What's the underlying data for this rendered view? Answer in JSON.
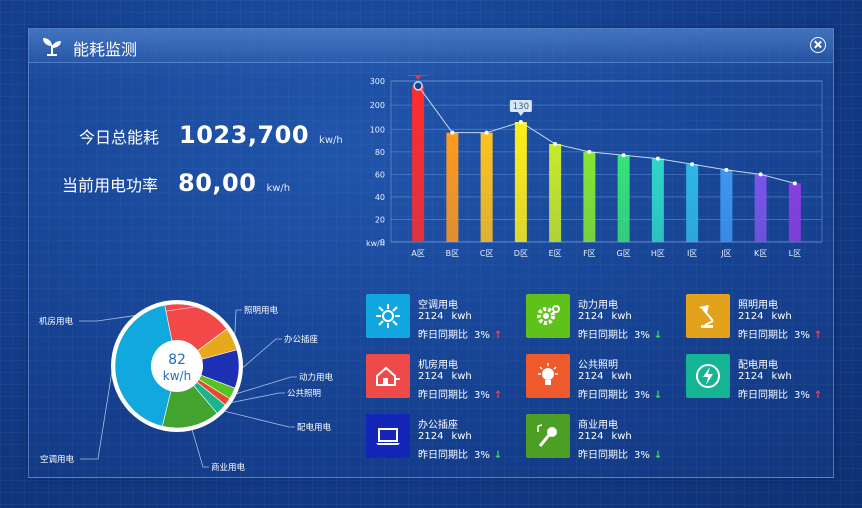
{
  "header": {
    "title": "能耗监测",
    "logo_icon": "leaf-plant-icon",
    "close_icon": "close-icon"
  },
  "stats": {
    "total": {
      "label": "今日总能耗",
      "value": "1023,700",
      "unit": "kw/h"
    },
    "power": {
      "label": "当前用电功率",
      "value": "80,00",
      "unit": "kw/h"
    }
  },
  "chart_data": [
    {
      "type": "bar",
      "ylabel": "kw/h",
      "ylim": [
        0,
        300
      ],
      "yticks": [
        0,
        20,
        40,
        60,
        80,
        100,
        200,
        300
      ],
      "categories": [
        "A区",
        "B区",
        "C区",
        "D区",
        "E区",
        "F区",
        "G区",
        "H区",
        "I区",
        "J区",
        "K区",
        "L区"
      ],
      "values": [
        280,
        97,
        97,
        130,
        87,
        80,
        77,
        74,
        69,
        64,
        60,
        52
      ],
      "colors": [
        "#ff2d2d",
        "#ff9a1f",
        "#ffc21f",
        "#ffee1a",
        "#c8ea2a",
        "#86e632",
        "#35e37a",
        "#2fd6c7",
        "#2fb6e8",
        "#3c96f0",
        "#7a55e6",
        "#8a3fe0"
      ],
      "annotations": [
        {
          "category": "A区",
          "label": "280",
          "color": "#e83a3a"
        },
        {
          "category": "D区",
          "label": "130",
          "color": "#d9e8f8"
        }
      ],
      "line_overlay": true,
      "grid": true
    },
    {
      "type": "pie",
      "center_value": "82",
      "center_unit": "kw/h",
      "slices": [
        {
          "label": "机房用电",
          "value": 18,
          "color": "#f24848"
        },
        {
          "label": "照明用电",
          "value": 6,
          "color": "#e7a91c"
        },
        {
          "label": "办公插座",
          "value": 10,
          "color": "#1d2fb3"
        },
        {
          "label": "动力用电",
          "value": 3,
          "color": "#56c322"
        },
        {
          "label": "公共照明",
          "value": 2,
          "color": "#e8482f"
        },
        {
          "label": "配电用电",
          "value": 3,
          "color": "#1ab38f"
        },
        {
          "label": "商业用电",
          "value": 15,
          "color": "#43a32f"
        },
        {
          "label": "空调用电",
          "value": 43,
          "color": "#11a8dd"
        }
      ]
    }
  ],
  "cards": [
    {
      "name": "空调用电",
      "amount": "2124",
      "unit": "kwh",
      "compare_label": "昨日同期比",
      "compare_value": "3%",
      "trend": "up",
      "arrow": "↑",
      "icon": "air-conditioner-icon",
      "color": "#12a6e0"
    },
    {
      "name": "动力用电",
      "amount": "2124",
      "unit": "kwh",
      "compare_label": "昨日同期比",
      "compare_value": "3%",
      "trend": "down",
      "arrow": "↓",
      "icon": "gear-icon",
      "color": "#5fc21a"
    },
    {
      "name": "照明用电",
      "amount": "2124",
      "unit": "kwh",
      "compare_label": "昨日同期比",
      "compare_value": "3%",
      "trend": "up",
      "arrow": "↑",
      "icon": "desk-lamp-icon",
      "color": "#e2a21b"
    },
    {
      "name": "机房用电",
      "amount": "2124",
      "unit": "kwh",
      "compare_label": "昨日同期比",
      "compare_value": "3%",
      "trend": "up",
      "arrow": "↑",
      "icon": "house-plug-icon",
      "color": "#ee4a4a"
    },
    {
      "name": "公共照明",
      "amount": "2124",
      "unit": "kwh",
      "compare_label": "昨日同期比",
      "compare_value": "3%",
      "trend": "down",
      "arrow": "↓",
      "icon": "light-bulb-icon",
      "color": "#ee5a2c"
    },
    {
      "name": "配电用电",
      "amount": "2124",
      "unit": "kwh",
      "compare_label": "昨日同期比",
      "compare_value": "3%",
      "trend": "up",
      "arrow": "↑",
      "icon": "power-lightning-icon",
      "color": "#14b494"
    },
    {
      "name": "办公插座",
      "amount": "2124",
      "unit": "kwh",
      "compare_label": "昨日同期比",
      "compare_value": "3%",
      "trend": "down",
      "arrow": "↓",
      "icon": "laptop-icon",
      "color": "#1426b8"
    },
    {
      "name": "商业用电",
      "amount": "2124",
      "unit": "kwh",
      "compare_label": "昨日同期比",
      "compare_value": "3%",
      "trend": "down",
      "arrow": "↓",
      "icon": "microphone-music-icon",
      "color": "#4c9f25"
    }
  ]
}
